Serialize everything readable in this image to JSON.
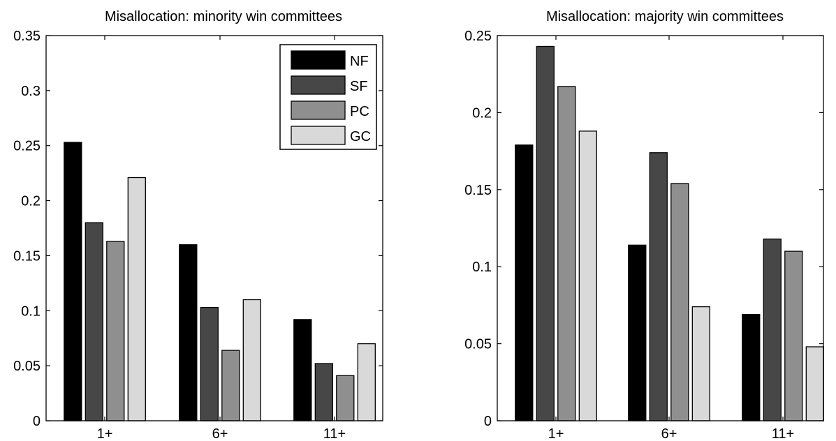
{
  "chart_data": [
    {
      "type": "bar",
      "title": "Misallocation: minority win committees",
      "categories": [
        "1+",
        "6+",
        "11+"
      ],
      "series": [
        {
          "name": "NF",
          "values": [
            0.253,
            0.16,
            0.092
          ]
        },
        {
          "name": "SF",
          "values": [
            0.18,
            0.103,
            0.052
          ]
        },
        {
          "name": "PC",
          "values": [
            0.163,
            0.064,
            0.041
          ]
        },
        {
          "name": "GC",
          "values": [
            0.221,
            0.11,
            0.07
          ]
        }
      ],
      "ylim": [
        0,
        0.35
      ],
      "yticks": [
        "0",
        "0.05",
        "0.1",
        "0.15",
        "0.2",
        "0.25",
        "0.3",
        "0.35"
      ],
      "xlabel": "",
      "ylabel": "",
      "legend_position": "top-right",
      "grid": false
    },
    {
      "type": "bar",
      "title": "Misallocation: majority win committees",
      "categories": [
        "1+",
        "6+",
        "11+"
      ],
      "series": [
        {
          "name": "NF",
          "values": [
            0.179,
            0.114,
            0.069
          ]
        },
        {
          "name": "SF",
          "values": [
            0.243,
            0.174,
            0.118
          ]
        },
        {
          "name": "PC",
          "values": [
            0.217,
            0.154,
            0.11
          ]
        },
        {
          "name": "GC",
          "values": [
            0.188,
            0.074,
            0.048
          ]
        }
      ],
      "ylim": [
        0,
        0.25
      ],
      "yticks": [
        "0",
        "0.05",
        "0.1",
        "0.15",
        "0.2",
        "0.25"
      ],
      "xlabel": "",
      "ylabel": "",
      "grid": false
    }
  ],
  "colors": {
    "NF": "#000000",
    "SF": "#474747",
    "PC": "#8f8f8f",
    "GC": "#d9d9d9"
  }
}
